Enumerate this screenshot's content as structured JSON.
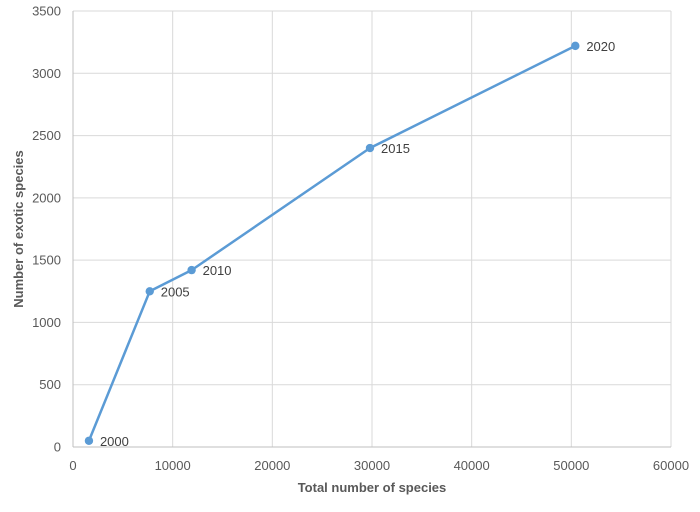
{
  "chart_data": {
    "type": "scatter",
    "xlabel": "Total number of species",
    "ylabel": "Number of exotic species",
    "xlim": [
      0,
      60000
    ],
    "ylim": [
      0,
      3500
    ],
    "x_ticks": [
      0,
      10000,
      20000,
      30000,
      40000,
      50000,
      60000
    ],
    "y_ticks": [
      0,
      500,
      1000,
      1500,
      2000,
      2500,
      3000,
      3500
    ],
    "grid": true,
    "line_color": "#5B9BD5",
    "series": [
      {
        "points": [
          {
            "label": "2000",
            "x": 1600,
            "y": 50
          },
          {
            "label": "2005",
            "x": 7700,
            "y": 1250
          },
          {
            "label": "2010",
            "x": 11900,
            "y": 1420
          },
          {
            "label": "2015",
            "x": 29800,
            "y": 2400
          },
          {
            "label": "2020",
            "x": 50400,
            "y": 3220
          }
        ]
      }
    ]
  }
}
